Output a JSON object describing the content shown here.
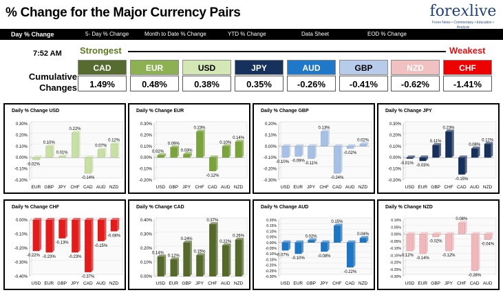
{
  "header": {
    "title": "% Change for the Major Currency Pairs",
    "logo": {
      "part1": "fore",
      "part2": "x",
      "part3": "live",
      "tagline": "Forex News • Commentary • Education • Analysis"
    }
  },
  "tabs": [
    {
      "label": "Day % Change",
      "active": true
    },
    {
      "label": "5- Day % Change",
      "active": false
    },
    {
      "label": "Month to Date % Change",
      "active": false
    },
    {
      "label": "YTD % Change",
      "active": false
    },
    {
      "label": "Data Sheet",
      "active": false
    },
    {
      "label": "EOD % Change",
      "active": false
    }
  ],
  "summary": {
    "time": "7:52 AM",
    "strongest_label": "Strongest",
    "weakest_label": "Weakest",
    "cumulative_label": "Cumulative Changes",
    "currencies": [
      {
        "code": "CAD",
        "value": "1.49%",
        "bg": "#556b2f",
        "fg": "#ffffff"
      },
      {
        "code": "EUR",
        "value": "0.48%",
        "bg": "#8db052",
        "fg": "#ffffff"
      },
      {
        "code": "USD",
        "value": "0.38%",
        "bg": "#d4e8b5",
        "fg": "#000000"
      },
      {
        "code": "JPY",
        "value": "0.35%",
        "bg": "#16325c",
        "fg": "#ffffff"
      },
      {
        "code": "AUD",
        "value": "-0.26%",
        "bg": "#1f78c8",
        "fg": "#ffffff"
      },
      {
        "code": "GBP",
        "value": "-0.41%",
        "bg": "#b7cbea",
        "fg": "#000000"
      },
      {
        "code": "NZD",
        "value": "-0.62%",
        "bg": "#f1c0c0",
        "fg": "#ffffff"
      },
      {
        "code": "CHF",
        "value": "-1.41%",
        "bg": "#ee0000",
        "fg": "#ffffff"
      }
    ]
  },
  "chart_data": [
    {
      "type": "bar",
      "title": "Daily % Change USD",
      "color": "#c9e0a5",
      "categories": [
        "EUR",
        "GBP",
        "JPY",
        "CHF",
        "CAD",
        "AUD",
        "NZD"
      ],
      "values": [
        -0.02,
        0.1,
        0.01,
        0.22,
        -0.14,
        0.07,
        0.12
      ],
      "labels": [
        "-0.02%",
        "0.10%",
        "0.01%",
        "0.22%",
        "-0.14%",
        "0.07%",
        "0.12%"
      ],
      "ylim": [
        -0.2,
        0.3
      ],
      "ticks": [
        "-0.20%",
        "-0.10%",
        "0.00%",
        "0.10%",
        "0.20%",
        "0.30%"
      ],
      "tick_step": 0.1
    },
    {
      "type": "bar",
      "title": "Daily % Change EUR",
      "color": "#7aa33a",
      "categories": [
        "USD",
        "GBP",
        "JPY",
        "CHF",
        "CAD",
        "AUD",
        "NZD"
      ],
      "values": [
        0.02,
        0.09,
        0.03,
        0.23,
        -0.12,
        0.1,
        0.14
      ],
      "labels": [
        "0.02%",
        "0.09%",
        "0.03%",
        "0.23%",
        "-0.12%",
        "0.10%",
        "0.14%"
      ],
      "ylim": [
        -0.2,
        0.3
      ],
      "ticks": [
        "-0.20%",
        "-0.10%",
        "0.00%",
        "0.10%",
        "0.20%",
        "0.30%"
      ],
      "tick_step": 0.1
    },
    {
      "type": "bar",
      "title": "Daily % Change GBP",
      "color": "#a7c1e6",
      "categories": [
        "USD",
        "EUR",
        "JPY",
        "CHF",
        "CAD",
        "AUD",
        "NZD"
      ],
      "values": [
        -0.1,
        -0.09,
        -0.11,
        0.13,
        -0.24,
        -0.02,
        0.02
      ],
      "labels": [
        "-0.10%",
        "-0.09%",
        "-0.11%",
        "0.13%",
        "-0.24%",
        "-0.02%",
        "0.02%"
      ],
      "ylim": [
        -0.3,
        0.2
      ],
      "ticks": [
        "-0.30%",
        "-0.20%",
        "-0.10%",
        "0.00%",
        "0.10%",
        "0.20%"
      ],
      "tick_step": 0.1
    },
    {
      "type": "bar",
      "title": "Daily % Change JPY",
      "color": "#17305a",
      "categories": [
        "USD",
        "EUR",
        "GBP",
        "CHF",
        "CAD",
        "AUD",
        "NZD"
      ],
      "values": [
        -0.01,
        -0.03,
        0.11,
        0.23,
        -0.15,
        0.08,
        0.12
      ],
      "labels": [
        "-0.01%",
        "-0.03%",
        "0.11%",
        "0.23%",
        "-0.15%",
        "0.08%",
        "0.12%"
      ],
      "ylim": [
        -0.2,
        0.3
      ],
      "ticks": [
        "-0.20%",
        "-0.10%",
        "0.00%",
        "0.10%",
        "0.20%",
        "0.30%"
      ],
      "tick_step": 0.1
    },
    {
      "type": "bar",
      "title": "Daily % Change CHF",
      "color": "#e31b1b",
      "categories": [
        "USD",
        "EUR",
        "GBP",
        "JPY",
        "CAD",
        "AUD",
        "NZD"
      ],
      "values": [
        -0.22,
        -0.23,
        -0.13,
        -0.23,
        -0.37,
        -0.15,
        -0.08
      ],
      "labels": [
        "-0.22%",
        "-0.23%",
        "-0.13%",
        "-0.23%",
        "-0.37%",
        "-0.15%",
        "-0.08%"
      ],
      "ylim": [
        -0.4,
        0.0
      ],
      "ticks": [
        "-0.40%",
        "-0.30%",
        "-0.20%",
        "-0.10%",
        "0.00%"
      ],
      "tick_step": 0.1
    },
    {
      "type": "bar",
      "title": "Daily % Change CAD",
      "color": "#55692a",
      "categories": [
        "USD",
        "EUR",
        "GBP",
        "JPY",
        "CHF",
        "AUD",
        "NZD"
      ],
      "values": [
        0.14,
        0.12,
        0.24,
        0.15,
        0.37,
        0.22,
        0.26
      ],
      "labels": [
        "0.14%",
        "0.12%",
        "0.24%",
        "0.15%",
        "0.37%",
        "0.22%",
        "0.26%"
      ],
      "ylim": [
        0.0,
        0.4
      ],
      "ticks": [
        "0.00%",
        "0.10%",
        "0.20%",
        "0.30%",
        "0.40%"
      ],
      "tick_step": 0.1
    },
    {
      "type": "bar",
      "title": "Daily % Change AUD",
      "color": "#1d76c4",
      "categories": [
        "USD",
        "EUR",
        "GBP",
        "JPY",
        "CHF",
        "CAD",
        "NZD"
      ],
      "values": [
        -0.07,
        -0.1,
        0.02,
        -0.08,
        0.15,
        -0.22,
        0.04
      ],
      "labels": [
        "-0.07%",
        "-0.10%",
        "0.02%",
        "-0.08%",
        "0.15%",
        "-0.22%",
        "0.04%"
      ],
      "ylim": [
        -0.3,
        0.2
      ],
      "ticks": [
        "-0.30%",
        "-0.25%",
        "-0.20%",
        "-0.15%",
        "-0.10%",
        "-0.05%",
        "0.00%",
        "0.05%",
        "0.10%",
        "0.15%",
        "0.20%"
      ],
      "tick_step": 0.05
    },
    {
      "type": "bar",
      "title": "Daily % Change NZD",
      "color": "#f0b8bb",
      "categories": [
        "USD",
        "EUR",
        "GBP",
        "JPY",
        "CHF",
        "CAD",
        "AUD"
      ],
      "values": [
        -0.12,
        -0.14,
        -0.02,
        -0.12,
        0.08,
        -0.26,
        -0.04
      ],
      "labels": [
        "-0.12%",
        "-0.14%",
        "-0.02%",
        "-0.12%",
        "0.08%",
        "-0.26%",
        "-0.04%"
      ],
      "ylim": [
        -0.3,
        0.1
      ],
      "ticks": [
        "-0.30%",
        "-0.25%",
        "-0.20%",
        "-0.15%",
        "-0.10%",
        "-0.05%",
        "0.00%",
        "0.05%",
        "0.10%"
      ],
      "tick_step": 0.05
    }
  ]
}
